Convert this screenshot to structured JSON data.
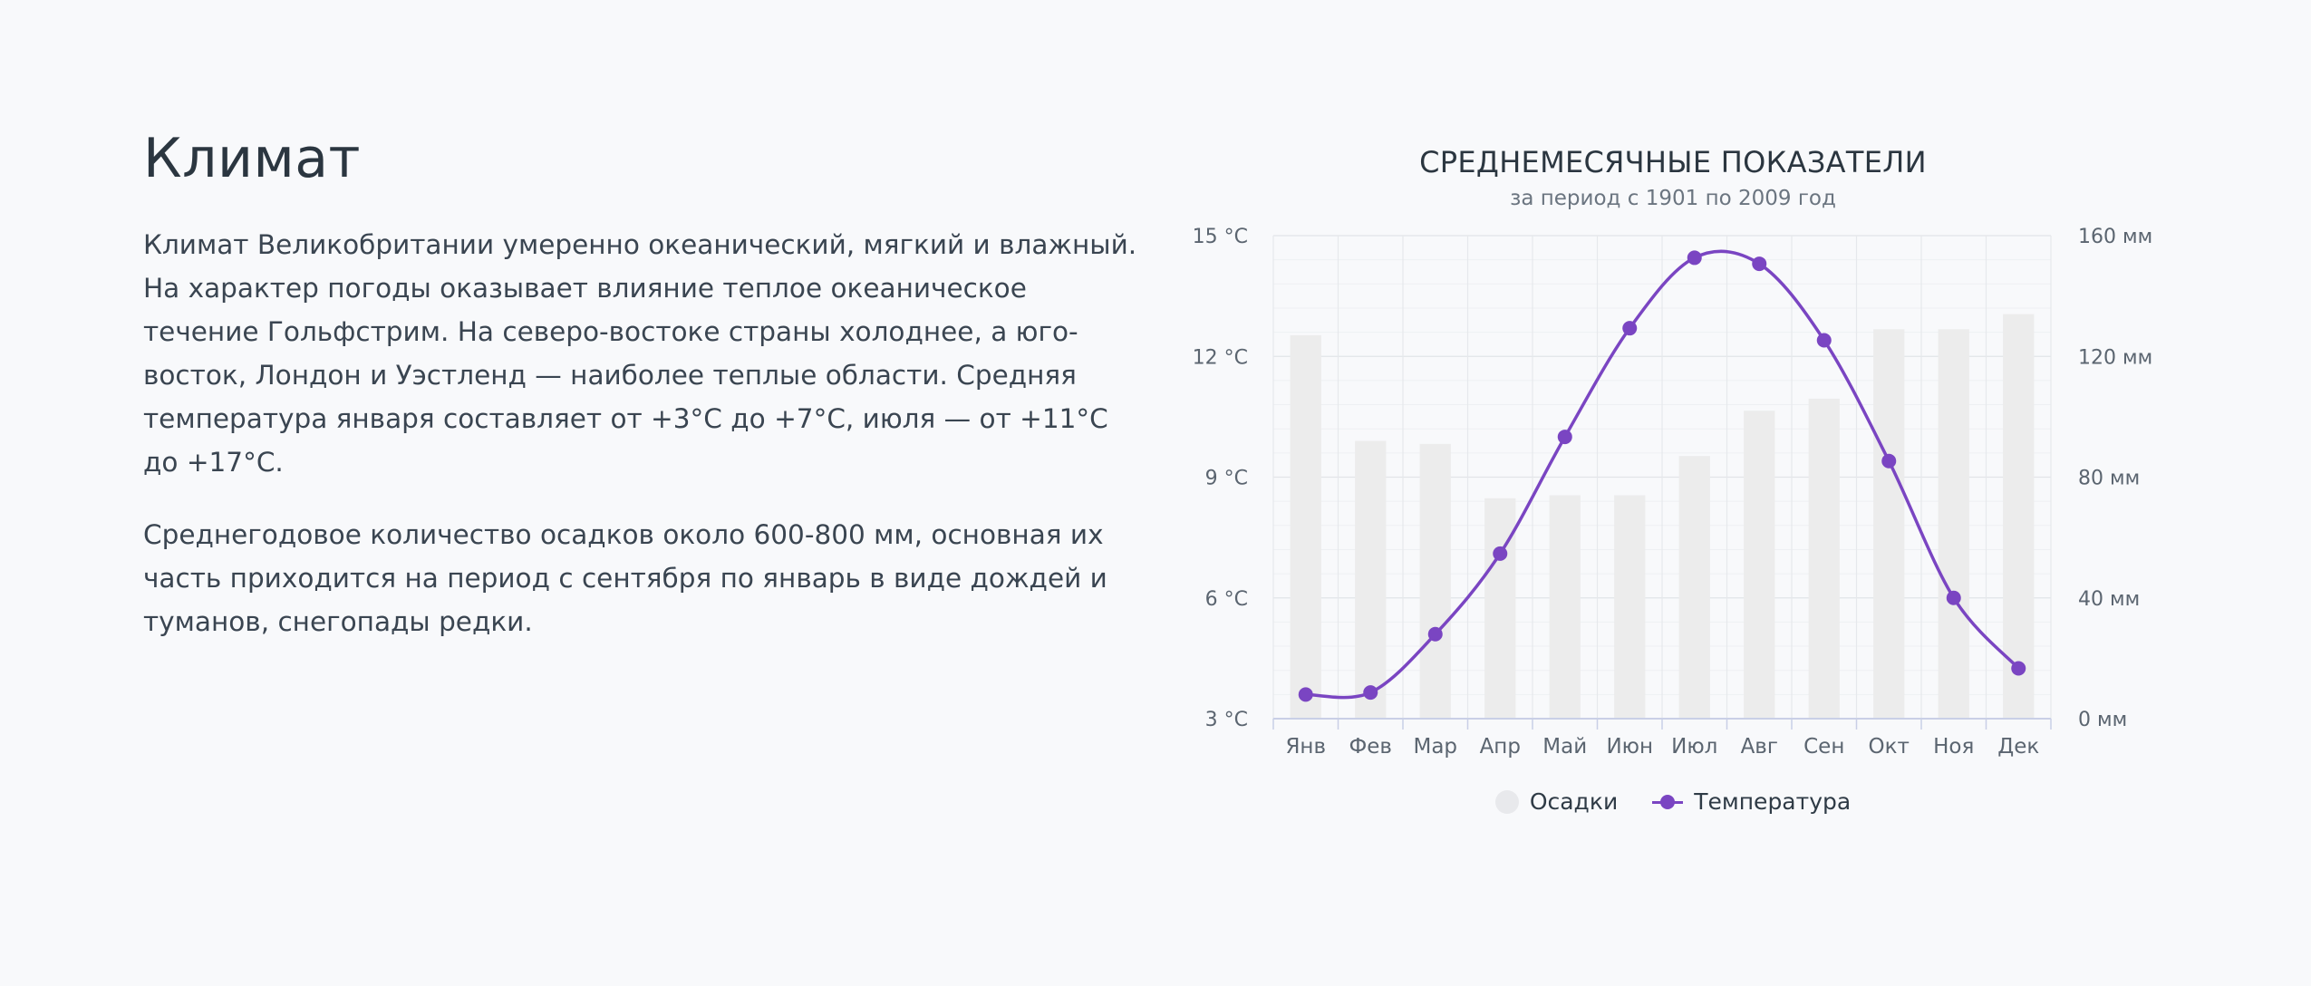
{
  "section": {
    "title": "Климат",
    "paragraphs": [
      "Климат Великобритании умеренно океанический, мягкий и влажный. На характер погоды оказывает влияние теплое океаническое течение Гольфстрим. На северо-востоке страны холоднее, а юго-восток, Лондон и Уэстленд — наиболее теплые области. Средняя температура января составляет от +3°С до +7°С, июля — от +11°С до +17°С.",
      "Среднегодовое количество осадков около 600-800 мм, основная их часть приходится на период с сентября по январь в виде дождей и туманов, снегопады редки."
    ]
  },
  "chart_data": {
    "type": "bar",
    "title": "СРЕДНЕМЕСЯЧНЫЕ ПОКАЗАТЕЛИ",
    "subtitle": "за период с 1901 по 2009 год",
    "categories": [
      "Янв",
      "Фев",
      "Мар",
      "Апр",
      "Май",
      "Июн",
      "Июл",
      "Авг",
      "Сен",
      "Окт",
      "Ноя",
      "Дек"
    ],
    "series": [
      {
        "name": "Осадки",
        "type": "bar",
        "axis": "right",
        "color": "#ececec",
        "values": [
          127,
          92,
          91,
          73,
          74,
          74,
          87,
          102,
          106,
          129,
          129,
          134
        ]
      },
      {
        "name": "Температура",
        "type": "line",
        "axis": "left",
        "color": "#7a45c2",
        "values": [
          3.6,
          3.65,
          5.1,
          7.1,
          10.0,
          12.7,
          14.45,
          14.3,
          12.4,
          9.4,
          6.0,
          4.25
        ]
      }
    ],
    "y_left": {
      "ticks": [
        "15 °C",
        "12 °C",
        "9 °C",
        "6 °C",
        "3 °C"
      ],
      "ylim": [
        3,
        15
      ]
    },
    "y_right": {
      "ticks": [
        "160 мм",
        "120 мм",
        "80 мм",
        "40 мм",
        "0 мм"
      ],
      "ylim": [
        0,
        160
      ]
    },
    "grid": true,
    "legend": "bottom",
    "legend_labels": [
      "Осадки",
      "Температура"
    ]
  }
}
